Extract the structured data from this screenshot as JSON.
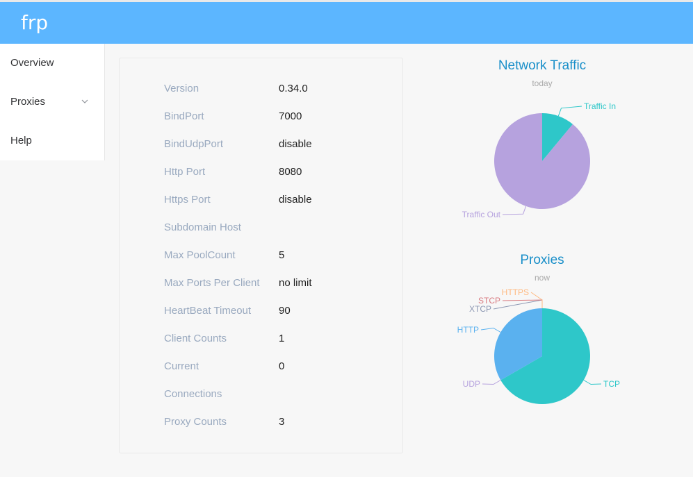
{
  "app": {
    "brand": "frp"
  },
  "sidebar": {
    "items": [
      {
        "label": "Overview"
      },
      {
        "label": "Proxies",
        "expandable": true,
        "icon": "chevron-down-icon"
      },
      {
        "label": "Help"
      }
    ]
  },
  "server_info": [
    {
      "label": "Version",
      "value": "0.34.0"
    },
    {
      "label": "BindPort",
      "value": "7000"
    },
    {
      "label": "BindUdpPort",
      "value": "disable"
    },
    {
      "label": "Http Port",
      "value": "8080"
    },
    {
      "label": "Https Port",
      "value": "disable"
    },
    {
      "label": "Subdomain Host",
      "value": ""
    },
    {
      "label": "Max PoolCount",
      "value": "5"
    },
    {
      "label": "Max Ports Per Client",
      "value": "no limit"
    },
    {
      "label": "HeartBeat Timeout",
      "value": "90"
    },
    {
      "label": "Client Counts",
      "value": "1"
    },
    {
      "label": "Current",
      "value": "0"
    },
    {
      "label": "Connections",
      "value": ""
    },
    {
      "label": "Proxy Counts",
      "value": "3"
    }
  ],
  "colors": {
    "header": "#5cb6ff",
    "traffic_in": "#2ec7c9",
    "traffic_out": "#b6a2de",
    "tcp": "#2ec7c9",
    "udp": "#b6a2de",
    "http": "#5ab1ef",
    "https": "#ffb980",
    "stcp": "#d87a80",
    "xtcp": "#8d98b3"
  },
  "chart_data": [
    {
      "type": "pie",
      "title": "Network Traffic",
      "subtitle": "today",
      "slices": [
        {
          "label": "Traffic In",
          "value": 0.11,
          "color": "#2ec7c9"
        },
        {
          "label": "Traffic Out",
          "value": 0.89,
          "color": "#b6a2de"
        }
      ]
    },
    {
      "type": "pie",
      "title": "Proxies",
      "subtitle": "now",
      "slices": [
        {
          "label": "TCP",
          "value": 2,
          "color": "#2ec7c9"
        },
        {
          "label": "UDP",
          "value": 0,
          "color": "#b6a2de"
        },
        {
          "label": "HTTP",
          "value": 1,
          "color": "#5ab1ef"
        },
        {
          "label": "XTCP",
          "value": 0,
          "color": "#8d98b3"
        },
        {
          "label": "STCP",
          "value": 0,
          "color": "#d87a80"
        },
        {
          "label": "HTTPS",
          "value": 0,
          "color": "#ffb980"
        }
      ]
    }
  ]
}
